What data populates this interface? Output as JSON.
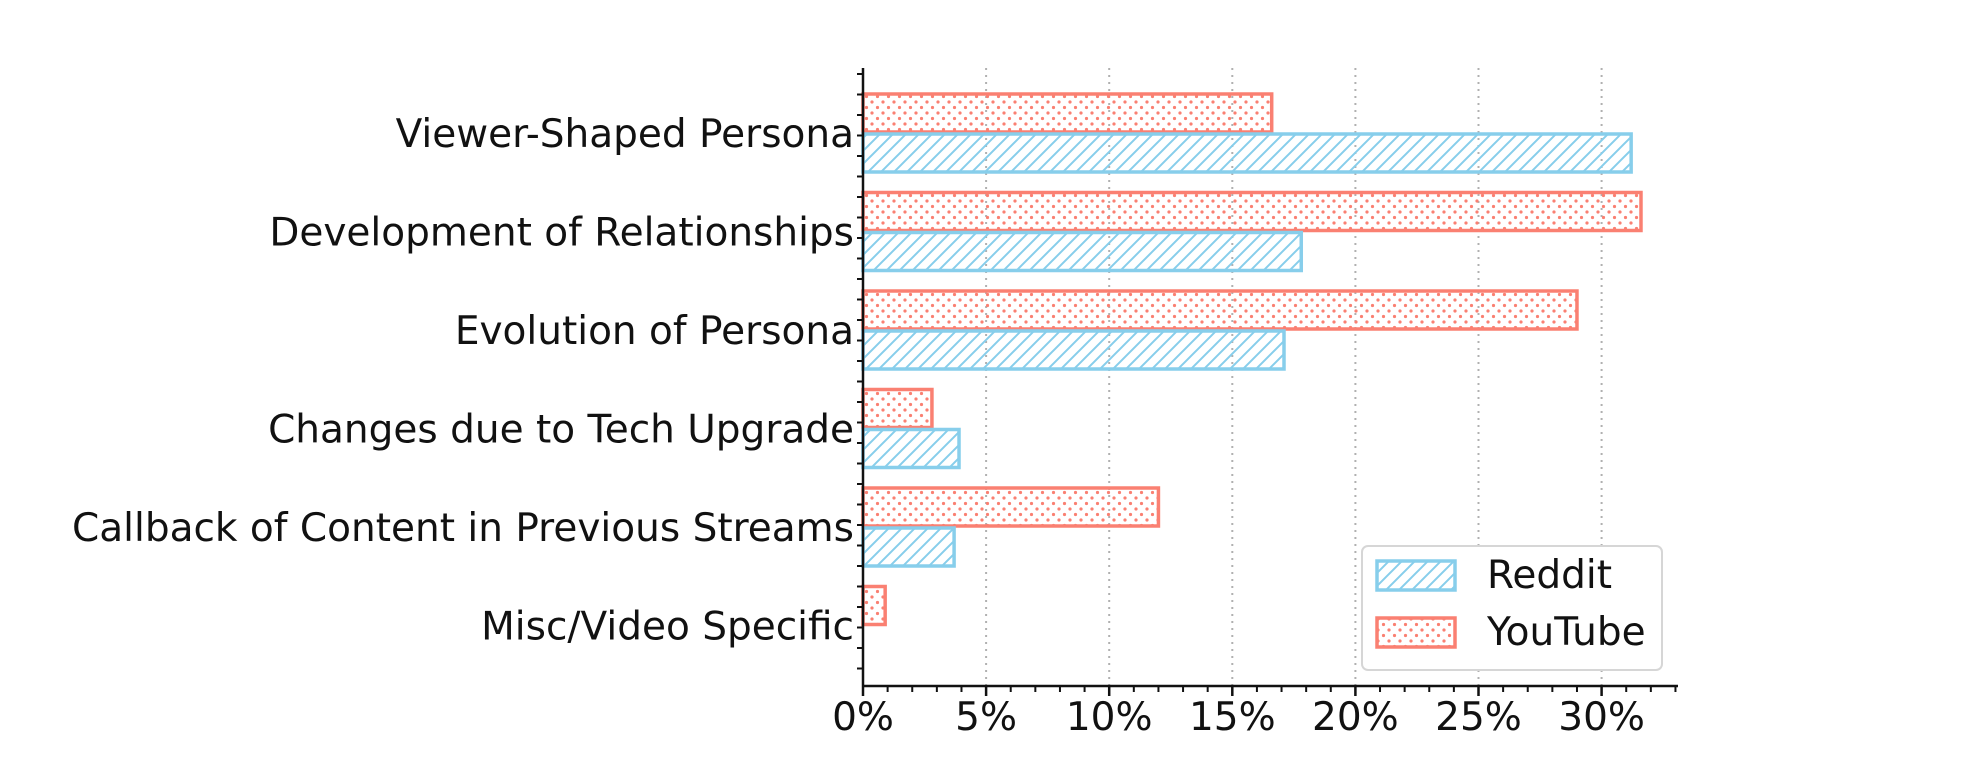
{
  "chart_data": {
    "type": "bar",
    "orientation": "horizontal",
    "categories": [
      "Viewer-Shaped Persona",
      "Development of Relationships",
      "Evolution of Persona",
      "Changes due to Tech Upgrade",
      "Callback of Content in Previous Streams",
      "Misc/Video Specific"
    ],
    "series": [
      {
        "name": "Reddit",
        "values": [
          31.2,
          17.8,
          17.1,
          3.9,
          3.7,
          0.0
        ],
        "color": "#87CEEB",
        "pattern": "diagonal-hatch"
      },
      {
        "name": "YouTube",
        "values": [
          16.6,
          31.6,
          29.0,
          2.8,
          12.0,
          0.9
        ],
        "color": "#FA8072",
        "pattern": "dots"
      }
    ],
    "xticks": [
      "0%",
      "5%",
      "10%",
      "15%",
      "20%",
      "25%",
      "30%"
    ],
    "xtick_values": [
      0,
      5,
      10,
      15,
      20,
      25,
      30
    ],
    "xlim": [
      0,
      33
    ],
    "xgrid": true,
    "grid_style": "dotted",
    "legend_position": "lower-right",
    "title": "",
    "xlabel": "",
    "ylabel": ""
  }
}
